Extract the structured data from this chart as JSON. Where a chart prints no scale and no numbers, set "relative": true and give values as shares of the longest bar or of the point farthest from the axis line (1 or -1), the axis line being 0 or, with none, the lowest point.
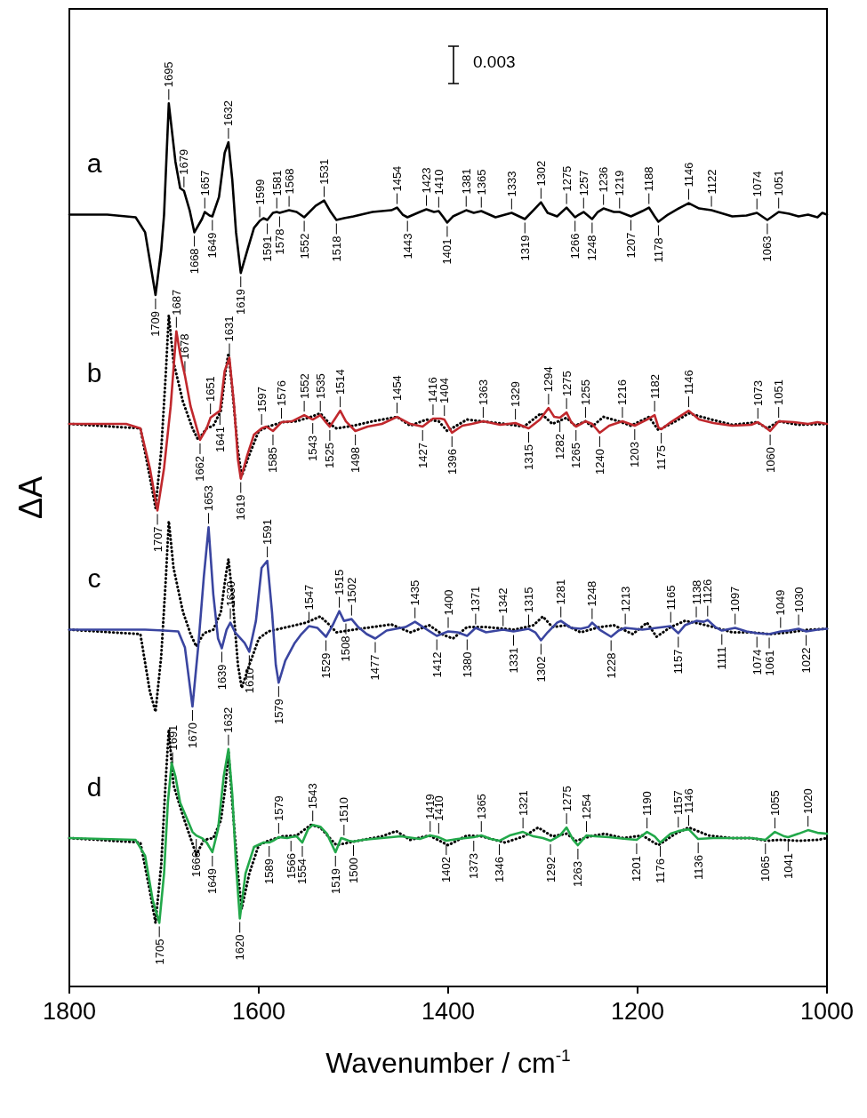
{
  "chart_data": {
    "type": "line",
    "relative": true,
    "marker": "none",
    "xlabel": "Wavenumber / cm$^{-1}$",
    "ylabel": "ΔA",
    "xlim": [
      1800,
      1000
    ],
    "xticks": [
      1800,
      1600,
      1400,
      1200,
      1000
    ],
    "series": [
      {
        "name": "a",
        "color": "#000000",
        "x": [
          1800,
          1760,
          1730,
          1720,
          1709,
          1703,
          1700,
          1695,
          1688,
          1683,
          1679,
          1673,
          1668,
          1660,
          1657,
          1652,
          1649,
          1642,
          1636,
          1632,
          1628,
          1624,
          1619,
          1612,
          1605,
          1599,
          1595,
          1591,
          1585,
          1581,
          1578,
          1568,
          1560,
          1552,
          1540,
          1531,
          1524,
          1518,
          1510,
          1500,
          1480,
          1460,
          1454,
          1448,
          1443,
          1430,
          1423,
          1415,
          1410,
          1405,
          1401,
          1395,
          1381,
          1373,
          1365,
          1350,
          1333,
          1319,
          1310,
          1302,
          1295,
          1285,
          1275,
          1266,
          1262,
          1257,
          1248,
          1242,
          1236,
          1225,
          1219,
          1207,
          1195,
          1188,
          1182,
          1178,
          1168,
          1155,
          1146,
          1135,
          1122,
          1100,
          1085,
          1074,
          1063,
          1051,
          1040,
          1030,
          1020,
          1010,
          1005,
          1000
        ],
        "values": [
          0.874,
          0.874,
          0.871,
          0.854,
          0.783,
          0.834,
          0.874,
          1.0,
          0.934,
          0.904,
          0.901,
          0.879,
          0.854,
          0.869,
          0.877,
          0.873,
          0.872,
          0.894,
          0.944,
          0.956,
          0.914,
          0.854,
          0.808,
          0.834,
          0.859,
          0.867,
          0.87,
          0.868,
          0.876,
          0.877,
          0.876,
          0.879,
          0.877,
          0.871,
          0.884,
          0.89,
          0.877,
          0.868,
          0.87,
          0.872,
          0.877,
          0.879,
          0.882,
          0.874,
          0.871,
          0.877,
          0.88,
          0.877,
          0.878,
          0.871,
          0.865,
          0.872,
          0.879,
          0.876,
          0.878,
          0.871,
          0.876,
          0.869,
          0.879,
          0.888,
          0.876,
          0.872,
          0.882,
          0.871,
          0.874,
          0.877,
          0.869,
          0.877,
          0.881,
          0.877,
          0.877,
          0.872,
          0.878,
          0.882,
          0.872,
          0.866,
          0.874,
          0.882,
          0.887,
          0.881,
          0.879,
          0.872,
          0.873,
          0.876,
          0.868,
          0.877,
          0.875,
          0.872,
          0.874,
          0.871,
          0.876,
          0.874
        ]
      },
      {
        "name": "b",
        "color": "#c0282d",
        "x": [
          1800,
          1740,
          1725,
          1715,
          1707,
          1700,
          1693,
          1687,
          1683,
          1678,
          1672,
          1668,
          1662,
          1655,
          1651,
          1641,
          1636,
          1631,
          1626,
          1622,
          1619,
          1612,
          1605,
          1597,
          1592,
          1585,
          1576,
          1565,
          1552,
          1543,
          1535,
          1530,
          1525,
          1520,
          1514,
          1508,
          1498,
          1485,
          1470,
          1454,
          1440,
          1427,
          1416,
          1408,
          1404,
          1396,
          1385,
          1375,
          1363,
          1345,
          1329,
          1315,
          1303,
          1294,
          1288,
          1282,
          1275,
          1270,
          1265,
          1255,
          1248,
          1240,
          1230,
          1216,
          1203,
          1190,
          1182,
          1178,
          1175,
          1165,
          1146,
          1135,
          1120,
          1100,
          1080,
          1073,
          1066,
          1060,
          1051,
          1035,
          1020,
          1010,
          1000
        ],
        "values": [
          0.637,
          0.637,
          0.632,
          0.587,
          0.539,
          0.587,
          0.657,
          0.742,
          0.716,
          0.692,
          0.657,
          0.642,
          0.619,
          0.632,
          0.644,
          0.652,
          0.697,
          0.712,
          0.657,
          0.597,
          0.575,
          0.602,
          0.625,
          0.632,
          0.634,
          0.629,
          0.639,
          0.64,
          0.647,
          0.642,
          0.647,
          0.64,
          0.634,
          0.642,
          0.652,
          0.64,
          0.629,
          0.634,
          0.637,
          0.645,
          0.637,
          0.634,
          0.643,
          0.643,
          0.642,
          0.627,
          0.635,
          0.637,
          0.64,
          0.636,
          0.638,
          0.632,
          0.642,
          0.655,
          0.645,
          0.644,
          0.65,
          0.639,
          0.634,
          0.64,
          0.637,
          0.627,
          0.635,
          0.64,
          0.635,
          0.642,
          0.647,
          0.633,
          0.631,
          0.639,
          0.652,
          0.642,
          0.638,
          0.635,
          0.636,
          0.639,
          0.634,
          0.629,
          0.64,
          0.639,
          0.637,
          0.639,
          0.637
        ]
      },
      {
        "color": "#000000",
        "line_style": "dotted",
        "x": [
          1800,
          1725,
          1715,
          1709,
          1703,
          1698,
          1695,
          1690,
          1680,
          1670,
          1664,
          1655,
          1648,
          1640,
          1635,
          1632,
          1628,
          1622,
          1618,
          1610,
          1600,
          1590,
          1575,
          1560,
          1545,
          1535,
          1525,
          1518,
          1500,
          1480,
          1454,
          1440,
          1423,
          1410,
          1401,
          1380,
          1365,
          1340,
          1320,
          1302,
          1290,
          1275,
          1266,
          1255,
          1248,
          1236,
          1220,
          1207,
          1188,
          1178,
          1160,
          1146,
          1122,
          1100,
          1074,
          1063,
          1051,
          1030,
          1000
        ],
        "values": [
          0.637,
          0.632,
          0.577,
          0.542,
          0.607,
          0.697,
          0.76,
          0.707,
          0.662,
          0.632,
          0.619,
          0.632,
          0.635,
          0.652,
          0.697,
          0.717,
          0.677,
          0.607,
          0.578,
          0.602,
          0.629,
          0.634,
          0.639,
          0.64,
          0.645,
          0.649,
          0.637,
          0.632,
          0.635,
          0.64,
          0.645,
          0.635,
          0.642,
          0.64,
          0.629,
          0.642,
          0.64,
          0.637,
          0.634,
          0.649,
          0.637,
          0.644,
          0.635,
          0.64,
          0.634,
          0.645,
          0.64,
          0.635,
          0.645,
          0.63,
          0.64,
          0.649,
          0.642,
          0.636,
          0.639,
          0.632,
          0.64,
          0.636,
          0.637
        ]
      },
      {
        "name": "c",
        "color": "#3a45a0",
        "x": [
          1800,
          1720,
          1700,
          1685,
          1678,
          1670,
          1664,
          1658,
          1653,
          1648,
          1643,
          1639,
          1634,
          1630,
          1625,
          1615,
          1610,
          1603,
          1597,
          1591,
          1586,
          1582,
          1579,
          1572,
          1562,
          1555,
          1547,
          1538,
          1529,
          1522,
          1515,
          1510,
          1502,
          1495,
          1486,
          1477,
          1465,
          1445,
          1435,
          1425,
          1412,
          1400,
          1390,
          1380,
          1371,
          1360,
          1342,
          1331,
          1315,
          1308,
          1302,
          1295,
          1285,
          1281,
          1270,
          1260,
          1252,
          1248,
          1240,
          1228,
          1220,
          1213,
          1195,
          1180,
          1165,
          1157,
          1150,
          1138,
          1130,
          1126,
          1118,
          1111,
          1097,
          1085,
          1074,
          1061,
          1049,
          1040,
          1030,
          1022,
          1010,
          1000
        ],
        "values": [
          0.404,
          0.404,
          0.403,
          0.402,
          0.384,
          0.317,
          0.384,
          0.464,
          0.52,
          0.444,
          0.394,
          0.383,
          0.404,
          0.412,
          0.401,
          0.389,
          0.379,
          0.414,
          0.474,
          0.482,
          0.424,
          0.364,
          0.344,
          0.369,
          0.389,
          0.399,
          0.408,
          0.406,
          0.396,
          0.409,
          0.425,
          0.414,
          0.416,
          0.407,
          0.399,
          0.394,
          0.403,
          0.407,
          0.413,
          0.406,
          0.397,
          0.402,
          0.401,
          0.397,
          0.406,
          0.401,
          0.404,
          0.402,
          0.405,
          0.401,
          0.392,
          0.401,
          0.412,
          0.414,
          0.406,
          0.405,
          0.407,
          0.412,
          0.404,
          0.396,
          0.403,
          0.406,
          0.404,
          0.406,
          0.408,
          0.4,
          0.409,
          0.414,
          0.413,
          0.415,
          0.407,
          0.403,
          0.406,
          0.402,
          0.4,
          0.399,
          0.402,
          0.403,
          0.405,
          0.402,
          0.404,
          0.405
        ]
      },
      {
        "color": "#000000",
        "line_style": "dotted",
        "x": [
          1800,
          1725,
          1715,
          1709,
          1703,
          1698,
          1695,
          1690,
          1680,
          1672,
          1666,
          1658,
          1648,
          1640,
          1635,
          1632,
          1628,
          1622,
          1618,
          1610,
          1600,
          1590,
          1570,
          1550,
          1535,
          1525,
          1518,
          1500,
          1460,
          1440,
          1420,
          1405,
          1395,
          1380,
          1360,
          1330,
          1310,
          1300,
          1290,
          1275,
          1260,
          1240,
          1225,
          1205,
          1190,
          1180,
          1165,
          1150,
          1135,
          1120,
          1100,
          1080,
          1060,
          1040,
          1020,
          1000
        ],
        "values": [
          0.404,
          0.399,
          0.334,
          0.311,
          0.374,
          0.464,
          0.527,
          0.474,
          0.424,
          0.399,
          0.385,
          0.4,
          0.404,
          0.424,
          0.464,
          0.484,
          0.444,
          0.364,
          0.338,
          0.364,
          0.394,
          0.402,
          0.407,
          0.412,
          0.419,
          0.409,
          0.401,
          0.404,
          0.41,
          0.401,
          0.409,
          0.398,
          0.394,
          0.407,
          0.407,
          0.404,
          0.409,
          0.419,
          0.407,
          0.409,
          0.401,
          0.407,
          0.409,
          0.399,
          0.412,
          0.396,
          0.407,
          0.414,
          0.411,
          0.407,
          0.401,
          0.401,
          0.399,
          0.401,
          0.404,
          0.405
        ]
      },
      {
        "name": "d",
        "color": "#22a84a",
        "x": [
          1800,
          1730,
          1720,
          1712,
          1705,
          1700,
          1696,
          1692,
          1688,
          1683,
          1675,
          1670,
          1666,
          1660,
          1655,
          1649,
          1643,
          1637,
          1632,
          1628,
          1624,
          1620,
          1614,
          1605,
          1595,
          1589,
          1585,
          1579,
          1570,
          1566,
          1560,
          1554,
          1548,
          1543,
          1535,
          1528,
          1519,
          1513,
          1510,
          1505,
          1500,
          1490,
          1470,
          1450,
          1430,
          1419,
          1410,
          1402,
          1390,
          1373,
          1365,
          1355,
          1346,
          1335,
          1321,
          1310,
          1300,
          1292,
          1282,
          1275,
          1268,
          1263,
          1254,
          1245,
          1230,
          1212,
          1201,
          1190,
          1182,
          1176,
          1165,
          1157,
          1146,
          1136,
          1120,
          1080,
          1065,
          1055,
          1045,
          1041,
          1030,
          1020,
          1010,
          1000
        ],
        "values": [
          0.168,
          0.166,
          0.148,
          0.098,
          0.072,
          0.128,
          0.208,
          0.253,
          0.238,
          0.208,
          0.188,
          0.175,
          0.171,
          0.168,
          0.163,
          0.152,
          0.178,
          0.238,
          0.269,
          0.218,
          0.138,
          0.077,
          0.128,
          0.158,
          0.163,
          0.163,
          0.165,
          0.169,
          0.168,
          0.169,
          0.17,
          0.163,
          0.178,
          0.183,
          0.181,
          0.173,
          0.152,
          0.168,
          0.167,
          0.165,
          0.164,
          0.166,
          0.168,
          0.17,
          0.167,
          0.171,
          0.169,
          0.165,
          0.167,
          0.169,
          0.171,
          0.167,
          0.165,
          0.171,
          0.175,
          0.17,
          0.168,
          0.165,
          0.171,
          0.18,
          0.166,
          0.16,
          0.171,
          0.17,
          0.169,
          0.167,
          0.166,
          0.175,
          0.17,
          0.163,
          0.173,
          0.176,
          0.178,
          0.167,
          0.168,
          0.168,
          0.166,
          0.175,
          0.17,
          0.169,
          0.173,
          0.177,
          0.174,
          0.173
        ]
      },
      {
        "color": "#000000",
        "line_style": "dotted",
        "x": [
          1800,
          1725,
          1715,
          1709,
          1703,
          1698,
          1695,
          1690,
          1680,
          1672,
          1666,
          1658,
          1648,
          1640,
          1635,
          1632,
          1628,
          1622,
          1618,
          1610,
          1600,
          1590,
          1575,
          1560,
          1545,
          1535,
          1525,
          1518,
          1500,
          1470,
          1455,
          1440,
          1420,
          1400,
          1380,
          1365,
          1340,
          1320,
          1305,
          1290,
          1275,
          1265,
          1250,
          1235,
          1215,
          1195,
          1178,
          1160,
          1146,
          1125,
          1100,
          1080,
          1063,
          1050,
          1030,
          1010,
          1000
        ],
        "values": [
          0.168,
          0.163,
          0.108,
          0.072,
          0.138,
          0.238,
          0.291,
          0.228,
          0.193,
          0.168,
          0.149,
          0.166,
          0.168,
          0.188,
          0.228,
          0.266,
          0.208,
          0.128,
          0.088,
          0.128,
          0.16,
          0.165,
          0.17,
          0.171,
          0.183,
          0.18,
          0.168,
          0.16,
          0.164,
          0.17,
          0.176,
          0.166,
          0.171,
          0.16,
          0.171,
          0.17,
          0.163,
          0.17,
          0.18,
          0.17,
          0.173,
          0.165,
          0.17,
          0.173,
          0.168,
          0.171,
          0.16,
          0.173,
          0.18,
          0.171,
          0.168,
          0.168,
          0.165,
          0.166,
          0.165,
          0.166,
          0.168
        ]
      }
    ],
    "annotations": [
      "0.003",
      {
        "text": "1695",
        "x": 1695,
        "y": 1.0
      },
      {
        "text": "1679",
        "x": 1679,
        "y": 0.901
      },
      {
        "text": "1657",
        "x": 1657,
        "y": 0.877
      },
      {
        "text": "1632",
        "x": 1632,
        "y": 0.956
      },
      {
        "text": "1599",
        "x": 1599,
        "y": 0.867
      },
      {
        "text": "1581",
        "x": 1581,
        "y": 0.877
      },
      {
        "text": "1568",
        "x": 1568,
        "y": 0.879
      },
      {
        "text": "1531",
        "x": 1531,
        "y": 0.89
      },
      {
        "text": "1454",
        "x": 1454,
        "y": 0.882
      },
      {
        "text": "1423",
        "x": 1423,
        "y": 0.88
      },
      {
        "text": "1410",
        "x": 1410,
        "y": 0.878
      },
      {
        "text": "1381",
        "x": 1381,
        "y": 0.879
      },
      {
        "text": "1365",
        "x": 1365,
        "y": 0.878
      },
      {
        "text": "1333",
        "x": 1333,
        "y": 0.876
      },
      {
        "text": "1302",
        "x": 1302,
        "y": 0.888
      },
      {
        "text": "1275",
        "x": 1275,
        "y": 0.882
      },
      {
        "text": "1257",
        "x": 1257,
        "y": 0.877
      },
      {
        "text": "1236",
        "x": 1236,
        "y": 0.881
      },
      {
        "text": "1219",
        "x": 1219,
        "y": 0.877
      },
      {
        "text": "1188",
        "x": 1188,
        "y": 0.882
      },
      {
        "text": "1146",
        "x": 1146,
        "y": 0.887
      },
      {
        "text": "1122",
        "x": 1122,
        "y": 0.879
      },
      {
        "text": "1074",
        "x": 1074,
        "y": 0.876
      },
      {
        "text": "1051",
        "x": 1051,
        "y": 0.877
      },
      {
        "text": "1709",
        "x": 1709,
        "y": 0.783
      },
      {
        "text": "1668",
        "x": 1668,
        "y": 0.854
      },
      {
        "text": "1649",
        "x": 1649,
        "y": 0.872
      },
      {
        "text": "1619",
        "x": 1619,
        "y": 0.808
      },
      {
        "text": "1591",
        "x": 1591,
        "y": 0.868
      },
      {
        "text": "1578",
        "x": 1578,
        "y": 0.876
      },
      {
        "text": "1552",
        "x": 1552,
        "y": 0.871
      },
      {
        "text": "1518",
        "x": 1518,
        "y": 0.868
      },
      {
        "text": "1443",
        "x": 1443,
        "y": 0.871
      },
      {
        "text": "1401",
        "x": 1401,
        "y": 0.865
      },
      {
        "text": "1319",
        "x": 1319,
        "y": 0.869
      },
      {
        "text": "1266",
        "x": 1266,
        "y": 0.871
      },
      {
        "text": "1248",
        "x": 1248,
        "y": 0.869
      },
      {
        "text": "1207",
        "x": 1207,
        "y": 0.872
      },
      {
        "text": "1178",
        "x": 1178,
        "y": 0.866
      },
      {
        "text": "1063",
        "x": 1063,
        "y": 0.868
      },
      {
        "text": "1687",
        "x": 1687,
        "y": 0.742
      },
      {
        "text": "1678",
        "x": 1678,
        "y": 0.692
      },
      {
        "text": "1651",
        "x": 1651,
        "y": 0.644
      },
      {
        "text": "1631",
        "x": 1631,
        "y": 0.712
      },
      {
        "text": "1597",
        "x": 1597,
        "y": 0.632
      },
      {
        "text": "1576",
        "x": 1576,
        "y": 0.639
      },
      {
        "text": "1552",
        "x": 1552,
        "y": 0.647
      },
      {
        "text": "1535",
        "x": 1535,
        "y": 0.647
      },
      {
        "text": "1514",
        "x": 1514,
        "y": 0.652
      },
      {
        "text": "1454",
        "x": 1454,
        "y": 0.645
      },
      {
        "text": "1416",
        "x": 1416,
        "y": 0.643
      },
      {
        "text": "1404",
        "x": 1404,
        "y": 0.642
      },
      {
        "text": "1363",
        "x": 1363,
        "y": 0.64
      },
      {
        "text": "1329",
        "x": 1329,
        "y": 0.638
      },
      {
        "text": "1294",
        "x": 1294,
        "y": 0.655
      },
      {
        "text": "1275",
        "x": 1275,
        "y": 0.65
      },
      {
        "text": "1255",
        "x": 1255,
        "y": 0.64
      },
      {
        "text": "1216",
        "x": 1216,
        "y": 0.64
      },
      {
        "text": "1182",
        "x": 1182,
        "y": 0.647
      },
      {
        "text": "1146",
        "x": 1146,
        "y": 0.652
      },
      {
        "text": "1073",
        "x": 1073,
        "y": 0.639
      },
      {
        "text": "1051",
        "x": 1051,
        "y": 0.64
      },
      {
        "text": "1707",
        "x": 1707,
        "y": 0.539
      },
      {
        "text": "1662",
        "x": 1662,
        "y": 0.619
      },
      {
        "text": "1641",
        "x": 1641,
        "y": 0.652
      },
      {
        "text": "1619",
        "x": 1619,
        "y": 0.575
      },
      {
        "text": "1585",
        "x": 1585,
        "y": 0.629
      },
      {
        "text": "1543",
        "x": 1543,
        "y": 0.642
      },
      {
        "text": "1525",
        "x": 1525,
        "y": 0.634
      },
      {
        "text": "1498",
        "x": 1498,
        "y": 0.629
      },
      {
        "text": "1427",
        "x": 1427,
        "y": 0.634
      },
      {
        "text": "1396",
        "x": 1396,
        "y": 0.627
      },
      {
        "text": "1315",
        "x": 1315,
        "y": 0.632
      },
      {
        "text": "1282",
        "x": 1282,
        "y": 0.644
      },
      {
        "text": "1265",
        "x": 1265,
        "y": 0.634
      },
      {
        "text": "1240",
        "x": 1240,
        "y": 0.627
      },
      {
        "text": "1203",
        "x": 1203,
        "y": 0.635
      },
      {
        "text": "1175",
        "x": 1175,
        "y": 0.631
      },
      {
        "text": "1060",
        "x": 1060,
        "y": 0.629
      },
      {
        "text": "1653",
        "x": 1653,
        "y": 0.52
      },
      {
        "text": "1630",
        "x": 1630,
        "y": 0.412
      },
      {
        "text": "1591",
        "x": 1591,
        "y": 0.482
      },
      {
        "text": "1547",
        "x": 1547,
        "y": 0.408
      },
      {
        "text": "1515",
        "x": 1515,
        "y": 0.425
      },
      {
        "text": "1502",
        "x": 1502,
        "y": 0.416
      },
      {
        "text": "1435",
        "x": 1435,
        "y": 0.413
      },
      {
        "text": "1400",
        "x": 1400,
        "y": 0.402
      },
      {
        "text": "1371",
        "x": 1371,
        "y": 0.406
      },
      {
        "text": "1342",
        "x": 1342,
        "y": 0.404
      },
      {
        "text": "1315",
        "x": 1315,
        "y": 0.405
      },
      {
        "text": "1281",
        "x": 1281,
        "y": 0.414
      },
      {
        "text": "1248",
        "x": 1248,
        "y": 0.412
      },
      {
        "text": "1213",
        "x": 1213,
        "y": 0.406
      },
      {
        "text": "1165",
        "x": 1165,
        "y": 0.408
      },
      {
        "text": "1138",
        "x": 1138,
        "y": 0.414
      },
      {
        "text": "1126",
        "x": 1126,
        "y": 0.415
      },
      {
        "text": "1097",
        "x": 1097,
        "y": 0.406
      },
      {
        "text": "1049",
        "x": 1049,
        "y": 0.402
      },
      {
        "text": "1030",
        "x": 1030,
        "y": 0.405
      },
      {
        "text": "1670",
        "x": 1670,
        "y": 0.317
      },
      {
        "text": "1639",
        "x": 1639,
        "y": 0.383
      },
      {
        "text": "1610",
        "x": 1610,
        "y": 0.379
      },
      {
        "text": "1579",
        "x": 1579,
        "y": 0.344
      },
      {
        "text": "1529",
        "x": 1529,
        "y": 0.396
      },
      {
        "text": "1508",
        "x": 1508,
        "y": 0.415
      },
      {
        "text": "1477",
        "x": 1477,
        "y": 0.394
      },
      {
        "text": "1412",
        "x": 1412,
        "y": 0.397
      },
      {
        "text": "1380",
        "x": 1380,
        "y": 0.397
      },
      {
        "text": "1331",
        "x": 1331,
        "y": 0.402
      },
      {
        "text": "1302",
        "x": 1302,
        "y": 0.392
      },
      {
        "text": "1228",
        "x": 1228,
        "y": 0.396
      },
      {
        "text": "1157",
        "x": 1157,
        "y": 0.4
      },
      {
        "text": "1111",
        "x": 1111,
        "y": 0.403
      },
      {
        "text": "1074",
        "x": 1074,
        "y": 0.4
      },
      {
        "text": "1061",
        "x": 1061,
        "y": 0.399
      },
      {
        "text": "1022",
        "x": 1022,
        "y": 0.402
      },
      {
        "text": "1691",
        "x": 1691,
        "y": 0.249
      },
      {
        "text": "1666",
        "x": 1666,
        "y": 0.171
      },
      {
        "text": "1632",
        "x": 1632,
        "y": 0.269
      },
      {
        "text": "1579",
        "x": 1579,
        "y": 0.169
      },
      {
        "text": "1566",
        "x": 1566,
        "y": 0.169
      },
      {
        "text": "1543",
        "x": 1543,
        "y": 0.183
      },
      {
        "text": "1510",
        "x": 1510,
        "y": 0.167
      },
      {
        "text": "1419",
        "x": 1419,
        "y": 0.171
      },
      {
        "text": "1410",
        "x": 1410,
        "y": 0.169
      },
      {
        "text": "1365",
        "x": 1365,
        "y": 0.171
      },
      {
        "text": "1321",
        "x": 1321,
        "y": 0.175
      },
      {
        "text": "1275",
        "x": 1275,
        "y": 0.18
      },
      {
        "text": "1254",
        "x": 1254,
        "y": 0.171
      },
      {
        "text": "1190",
        "x": 1190,
        "y": 0.175
      },
      {
        "text": "1157",
        "x": 1157,
        "y": 0.176
      },
      {
        "text": "1146",
        "x": 1146,
        "y": 0.178
      },
      {
        "text": "1055",
        "x": 1055,
        "y": 0.175
      },
      {
        "text": "1020",
        "x": 1020,
        "y": 0.177
      },
      {
        "text": "1705",
        "x": 1705,
        "y": 0.072
      },
      {
        "text": "1649",
        "x": 1649,
        "y": 0.152
      },
      {
        "text": "1620",
        "x": 1620,
        "y": 0.077
      },
      {
        "text": "1589",
        "x": 1589,
        "y": 0.163
      },
      {
        "text": "1554",
        "x": 1554,
        "y": 0.163
      },
      {
        "text": "1519",
        "x": 1519,
        "y": 0.152
      },
      {
        "text": "1500",
        "x": 1500,
        "y": 0.164
      },
      {
        "text": "1402",
        "x": 1402,
        "y": 0.165
      },
      {
        "text": "1373",
        "x": 1373,
        "y": 0.169
      },
      {
        "text": "1346",
        "x": 1346,
        "y": 0.165
      },
      {
        "text": "1292",
        "x": 1292,
        "y": 0.165
      },
      {
        "text": "1263",
        "x": 1263,
        "y": 0.16
      },
      {
        "text": "1201",
        "x": 1201,
        "y": 0.166
      },
      {
        "text": "1176",
        "x": 1176,
        "y": 0.163
      },
      {
        "text": "1136",
        "x": 1136,
        "y": 0.167
      },
      {
        "text": "1065",
        "x": 1065,
        "y": 0.166
      },
      {
        "text": "1041",
        "x": 1041,
        "y": 0.169
      }
    ]
  }
}
